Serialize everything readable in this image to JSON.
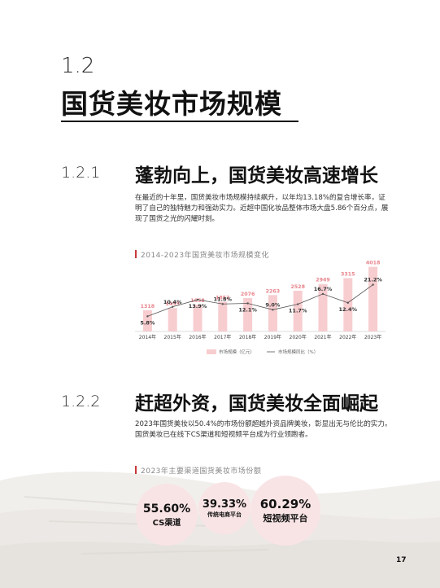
{
  "section": {
    "number": "1.2",
    "title": "国货美妆市场规模"
  },
  "subsection1": {
    "number": "1.2.1",
    "title": "蓬勃向上，国货美妆高速增长",
    "paragraph": "在最近的十年里，国货美妆市场规模持续飙升，以年均13.18%的复合增长率，证明了自己的独特魅力和强劲实力。近超中国化妆品整体市场大盘5.86个百分点，展现了国货之光的闪耀时刻。"
  },
  "chart_data": {
    "type": "bar",
    "title": "2014-2023年国货美妆市场规模变化",
    "categories": [
      "2014年",
      "2015年",
      "2016年",
      "2017年",
      "2018年",
      "2019年",
      "2020年",
      "2021年",
      "2022年",
      "2023年"
    ],
    "series": [
      {
        "name": "市场规模（亿元）",
        "type": "bar",
        "values": [
          1318,
          1455,
          1658,
          1852,
          2076,
          2263,
          2528,
          2949,
          3315,
          4018
        ],
        "labels": [
          "1318",
          "1455",
          "1658",
          "1852",
          "2076",
          "2263",
          "2528",
          "2949",
          "3315",
          "4018"
        ]
      },
      {
        "name": "市场规模同比（%）",
        "type": "line",
        "values": [
          5.8,
          10.4,
          13.9,
          11.8,
          12.1,
          9.0,
          11.7,
          16.7,
          12.4,
          21.2
        ],
        "labels": [
          "5.8%",
          "10.4%",
          "13.9%",
          "11.8%",
          "12.1%",
          "9.0%",
          "11.7%",
          "16.7%",
          "12.4%",
          "21.2%"
        ]
      }
    ],
    "colors": {
      "bar": "#f7cdd0",
      "bar_label": "#e8848c",
      "line": "#555555"
    },
    "ylim_bar": [
      0,
      4200
    ],
    "ylim_line": [
      0,
      25
    ],
    "legend": "bottom"
  },
  "subsection2": {
    "number": "1.2.2",
    "title": "赶超外资，国货美妆全面崛起",
    "paragraph": "2023年国货美妆以50.4%的市场份额超越外资品牌美妆，彰显出无与伦比的实力。国货美妆已在线下CS渠道和短视频平台成为行业领跑者。",
    "chart_title": "2023年主要渠道国货美妆市场份额"
  },
  "stats": [
    {
      "value": "55.60%",
      "label": "CS渠道"
    },
    {
      "value": "39.33%",
      "label": "传统电商平台"
    },
    {
      "value": "60.29%",
      "label": "短视频平台"
    }
  ],
  "page_number": "17",
  "accent_color": "#c83a3a"
}
